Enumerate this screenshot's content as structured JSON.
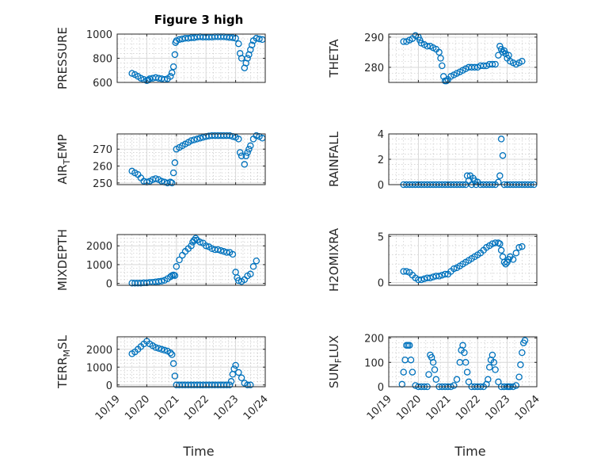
{
  "figure": {
    "title": "Figure 3 high",
    "x_axis_label": "Time",
    "x_tick_labels": [
      "10/19",
      "10/20",
      "10/21",
      "10/22",
      "10/23",
      "10/24"
    ]
  },
  "chart_data": [
    {
      "type": "scatter",
      "id": "pressure",
      "ylabel": "PRESSURE",
      "ylim": [
        600,
        1000
      ],
      "yticks": [
        600,
        800,
        1000
      ],
      "xlim": [
        0,
        5
      ],
      "xtick_values": [
        0,
        1,
        2,
        3,
        4,
        5
      ],
      "xtick_labels": [
        "10/19",
        "10/20",
        "10/21",
        "10/22",
        "10/23",
        "10/24"
      ],
      "marker": "circle",
      "color": "#0072BD",
      "grid": "major and minor",
      "x": [
        0.5,
        0.6,
        0.7,
        0.8,
        0.9,
        1.0,
        1.05,
        1.1,
        1.2,
        1.3,
        1.4,
        1.5,
        1.6,
        1.7,
        1.8,
        1.85,
        1.9,
        1.95,
        1.97,
        2.0,
        2.1,
        2.2,
        2.3,
        2.4,
        2.5,
        2.6,
        2.7,
        2.8,
        2.9,
        3.0,
        3.1,
        3.2,
        3.3,
        3.4,
        3.5,
        3.6,
        3.7,
        3.8,
        3.9,
        4.0,
        4.1,
        4.15,
        4.2,
        4.3,
        4.35,
        4.4,
        4.45,
        4.5,
        4.55,
        4.6,
        4.7,
        4.8,
        4.9
      ],
      "y": [
        675,
        665,
        650,
        635,
        625,
        615,
        620,
        630,
        635,
        640,
        635,
        630,
        625,
        630,
        650,
        680,
        730,
        830,
        930,
        945,
        955,
        960,
        965,
        965,
        970,
        970,
        975,
        978,
        975,
        975,
        975,
        975,
        978,
        978,
        978,
        978,
        975,
        972,
        970,
        965,
        920,
        840,
        800,
        720,
        760,
        800,
        830,
        870,
        910,
        945,
        965,
        960,
        955
      ]
    },
    {
      "type": "scatter",
      "id": "theta",
      "ylabel": "THETA",
      "ylim": [
        275,
        291
      ],
      "yticks": [
        280,
        290
      ],
      "xlim": [
        0,
        5
      ],
      "xtick_values": [
        0,
        1,
        2,
        3,
        4,
        5
      ],
      "marker": "circle",
      "color": "#0072BD",
      "grid": "major and minor",
      "x": [
        0.5,
        0.6,
        0.7,
        0.8,
        0.9,
        1.0,
        1.05,
        1.1,
        1.2,
        1.3,
        1.4,
        1.5,
        1.6,
        1.7,
        1.75,
        1.8,
        1.85,
        1.9,
        1.95,
        2.0,
        2.1,
        2.2,
        2.3,
        2.4,
        2.5,
        2.6,
        2.7,
        2.8,
        2.9,
        3.0,
        3.1,
        3.2,
        3.3,
        3.4,
        3.5,
        3.6,
        3.7,
        3.75,
        3.8,
        3.85,
        3.9,
        3.95,
        4.0,
        4.05,
        4.1,
        4.2,
        4.3,
        4.4,
        4.5
      ],
      "y": [
        288.5,
        288.5,
        289,
        289.5,
        290.5,
        290,
        289,
        288,
        287.5,
        287,
        287,
        286.5,
        286,
        285,
        283,
        280.5,
        277,
        275.5,
        275.5,
        276,
        277,
        277.5,
        278,
        278.5,
        279,
        279.5,
        280,
        280,
        280,
        280,
        280.5,
        280.5,
        280.5,
        281,
        281,
        281,
        284,
        287,
        286,
        285,
        285.5,
        284.5,
        283,
        284,
        282,
        281.5,
        281,
        281.5,
        282
      ]
    },
    {
      "type": "scatter",
      "id": "air_temp",
      "ylabel": "AIR_TEMP",
      "ylim": [
        249,
        279
      ],
      "yticks": [
        250,
        260,
        270
      ],
      "xlim": [
        0,
        5
      ],
      "xtick_values": [
        0,
        1,
        2,
        3,
        4,
        5
      ],
      "marker": "circle",
      "color": "#0072BD",
      "grid": "major and minor",
      "x": [
        0.5,
        0.6,
        0.7,
        0.8,
        0.9,
        1.0,
        1.1,
        1.2,
        1.3,
        1.4,
        1.5,
        1.6,
        1.7,
        1.8,
        1.85,
        1.9,
        1.95,
        2.0,
        2.1,
        2.2,
        2.3,
        2.4,
        2.5,
        2.6,
        2.7,
        2.8,
        2.9,
        3.0,
        3.1,
        3.2,
        3.3,
        3.4,
        3.5,
        3.6,
        3.7,
        3.8,
        3.9,
        4.0,
        4.1,
        4.15,
        4.2,
        4.3,
        4.35,
        4.4,
        4.45,
        4.5,
        4.6,
        4.7,
        4.8,
        4.9
      ],
      "y": [
        257,
        256,
        255,
        253,
        251,
        250.5,
        251,
        252,
        252.5,
        252,
        251,
        250.5,
        250,
        250.5,
        250,
        256,
        262,
        270,
        271,
        272,
        273,
        274,
        275,
        275.5,
        276,
        276.5,
        277,
        277.5,
        277.8,
        278,
        278,
        278,
        278,
        278,
        278,
        278,
        277.5,
        277,
        276,
        268,
        266,
        261,
        266,
        268,
        270,
        272,
        276,
        278,
        277.5,
        276.5
      ]
    },
    {
      "type": "scatter",
      "id": "rainfall",
      "ylabel": "RAINFALL",
      "ylim": [
        0,
        4
      ],
      "yticks": [
        0,
        2,
        4
      ],
      "xlim": [
        0,
        5
      ],
      "xtick_values": [
        0,
        1,
        2,
        3,
        4,
        5
      ],
      "marker": "circle",
      "color": "#0072BD",
      "grid": "major and minor",
      "x": [
        0.5,
        0.6,
        0.7,
        0.8,
        0.9,
        1.0,
        1.1,
        1.2,
        1.3,
        1.4,
        1.5,
        1.6,
        1.7,
        1.8,
        1.9,
        2.0,
        2.1,
        2.2,
        2.3,
        2.4,
        2.5,
        2.6,
        2.65,
        2.7,
        2.75,
        2.8,
        2.85,
        2.9,
        2.95,
        3.0,
        3.1,
        3.2,
        3.3,
        3.4,
        3.5,
        3.6,
        3.7,
        3.75,
        3.8,
        3.85,
        3.9,
        4.0,
        4.1,
        4.2,
        4.3,
        4.4,
        4.5,
        4.6,
        4.7,
        4.8,
        4.9
      ],
      "y": [
        0,
        0,
        0,
        0,
        0,
        0,
        0,
        0,
        0,
        0,
        0,
        0,
        0,
        0,
        0,
        0,
        0,
        0,
        0,
        0,
        0,
        0,
        0.7,
        0.3,
        0.7,
        0,
        0.5,
        0.3,
        0,
        0.2,
        0,
        0,
        0,
        0,
        0,
        0,
        0.2,
        0.7,
        3.6,
        2.3,
        0,
        0,
        0,
        0,
        0,
        0,
        0,
        0,
        0,
        0,
        0
      ]
    },
    {
      "type": "scatter",
      "id": "mixdepth",
      "ylabel": "MIXDEPTH",
      "ylim": [
        -100,
        2600
      ],
      "yticks": [
        0,
        1000,
        2000
      ],
      "xlim": [
        0,
        5
      ],
      "xtick_values": [
        0,
        1,
        2,
        3,
        4,
        5
      ],
      "marker": "circle",
      "color": "#0072BD",
      "grid": "major and minor",
      "x": [
        0.5,
        0.6,
        0.7,
        0.8,
        0.9,
        1.0,
        1.1,
        1.2,
        1.3,
        1.4,
        1.5,
        1.6,
        1.7,
        1.8,
        1.85,
        1.9,
        1.95,
        2.0,
        2.1,
        2.2,
        2.3,
        2.4,
        2.5,
        2.55,
        2.6,
        2.65,
        2.7,
        2.8,
        2.9,
        3.0,
        3.1,
        3.2,
        3.3,
        3.4,
        3.5,
        3.6,
        3.7,
        3.8,
        3.9,
        4.0,
        4.05,
        4.1,
        4.2,
        4.3,
        4.4,
        4.5,
        4.6,
        4.7
      ],
      "y": [
        20,
        20,
        20,
        20,
        30,
        30,
        50,
        60,
        80,
        100,
        120,
        160,
        250,
        350,
        420,
        450,
        420,
        900,
        1250,
        1500,
        1700,
        1850,
        2000,
        2200,
        2300,
        2400,
        2300,
        2200,
        2150,
        2000,
        1950,
        1850,
        1800,
        1800,
        1750,
        1700,
        1650,
        1650,
        1550,
        600,
        300,
        150,
        100,
        200,
        400,
        500,
        900,
        1200
      ]
    },
    {
      "type": "scatter",
      "id": "h2omixra",
      "ylabel": "H2OMIXRA",
      "ylim": [
        -0.3,
        5.2
      ],
      "yticks": [
        0,
        5
      ],
      "xlim": [
        0,
        5
      ],
      "xtick_values": [
        0,
        1,
        2,
        3,
        4,
        5
      ],
      "marker": "circle",
      "color": "#0072BD",
      "grid": "major and minor",
      "x": [
        0.5,
        0.6,
        0.7,
        0.8,
        0.9,
        1.0,
        1.1,
        1.2,
        1.3,
        1.4,
        1.5,
        1.6,
        1.7,
        1.8,
        1.9,
        2.0,
        2.1,
        2.2,
        2.3,
        2.4,
        2.5,
        2.6,
        2.7,
        2.8,
        2.9,
        3.0,
        3.1,
        3.2,
        3.3,
        3.4,
        3.5,
        3.6,
        3.7,
        3.75,
        3.8,
        3.85,
        3.9,
        3.95,
        4.0,
        4.05,
        4.1,
        4.2,
        4.3,
        4.4,
        4.5
      ],
      "y": [
        1.2,
        1.2,
        1.1,
        0.8,
        0.5,
        0.3,
        0.3,
        0.4,
        0.5,
        0.5,
        0.6,
        0.7,
        0.7,
        0.8,
        0.9,
        0.9,
        1.2,
        1.5,
        1.6,
        1.8,
        2.0,
        2.2,
        2.4,
        2.6,
        2.8,
        3.0,
        3.2,
        3.5,
        3.8,
        4.0,
        4.2,
        4.3,
        4.3,
        4.2,
        3.5,
        2.8,
        2.2,
        2.0,
        2.2,
        2.5,
        2.8,
        2.5,
        3.2,
        3.8,
        3.9
      ]
    },
    {
      "type": "scatter",
      "id": "terr_msl",
      "ylabel": "TERR_MSL",
      "ylim": [
        -100,
        2700
      ],
      "yticks": [
        0,
        1000,
        2000
      ],
      "xlim": [
        0,
        5
      ],
      "xtick_values": [
        0,
        1,
        2,
        3,
        4,
        5
      ],
      "marker": "circle",
      "color": "#0072BD",
      "grid": "major and minor",
      "x": [
        0.5,
        0.6,
        0.7,
        0.8,
        0.9,
        1.0,
        1.1,
        1.2,
        1.3,
        1.4,
        1.5,
        1.6,
        1.7,
        1.8,
        1.85,
        1.9,
        1.95,
        2.0,
        2.1,
        2.2,
        2.3,
        2.4,
        2.5,
        2.6,
        2.7,
        2.8,
        2.9,
        3.0,
        3.1,
        3.2,
        3.3,
        3.4,
        3.5,
        3.6,
        3.7,
        3.8,
        3.85,
        3.9,
        3.95,
        4.0,
        4.1,
        4.2,
        4.3,
        4.4,
        4.5
      ],
      "y": [
        1750,
        1850,
        2000,
        2150,
        2300,
        2450,
        2300,
        2200,
        2100,
        2050,
        2000,
        1950,
        1900,
        1800,
        1700,
        1200,
        500,
        0,
        0,
        0,
        0,
        0,
        0,
        0,
        0,
        0,
        0,
        0,
        0,
        0,
        0,
        0,
        0,
        0,
        0,
        0,
        200,
        600,
        900,
        1100,
        700,
        400,
        100,
        0,
        0
      ]
    },
    {
      "type": "scatter",
      "id": "sun_flux",
      "ylabel": "SUN_FLUX",
      "ylim": [
        0,
        205
      ],
      "yticks": [
        0,
        100,
        200
      ],
      "xlim": [
        0,
        5
      ],
      "xtick_values": [
        0,
        1,
        2,
        3,
        4,
        5
      ],
      "marker": "circle",
      "color": "#0072BD",
      "grid": "major and minor",
      "x": [
        0.45,
        0.5,
        0.55,
        0.6,
        0.65,
        0.7,
        0.75,
        0.8,
        0.9,
        1.0,
        1.1,
        1.2,
        1.3,
        1.35,
        1.4,
        1.45,
        1.5,
        1.55,
        1.6,
        1.7,
        1.8,
        1.9,
        2.0,
        2.1,
        2.2,
        2.3,
        2.4,
        2.45,
        2.5,
        2.55,
        2.6,
        2.65,
        2.7,
        2.8,
        2.9,
        3.0,
        3.1,
        3.2,
        3.3,
        3.35,
        3.4,
        3.45,
        3.5,
        3.55,
        3.6,
        3.7,
        3.8,
        3.9,
        4.0,
        4.05,
        4.1,
        4.2,
        4.3,
        4.4,
        4.45,
        4.5,
        4.55,
        4.6
      ],
      "y": [
        10,
        60,
        110,
        170,
        170,
        170,
        110,
        60,
        5,
        0,
        0,
        0,
        0,
        50,
        130,
        120,
        100,
        70,
        30,
        0,
        0,
        0,
        0,
        0,
        5,
        30,
        100,
        150,
        170,
        140,
        100,
        60,
        20,
        0,
        0,
        0,
        0,
        0,
        10,
        30,
        80,
        110,
        130,
        100,
        70,
        20,
        0,
        0,
        0,
        0,
        0,
        0,
        5,
        40,
        90,
        140,
        180,
        190
      ]
    }
  ]
}
